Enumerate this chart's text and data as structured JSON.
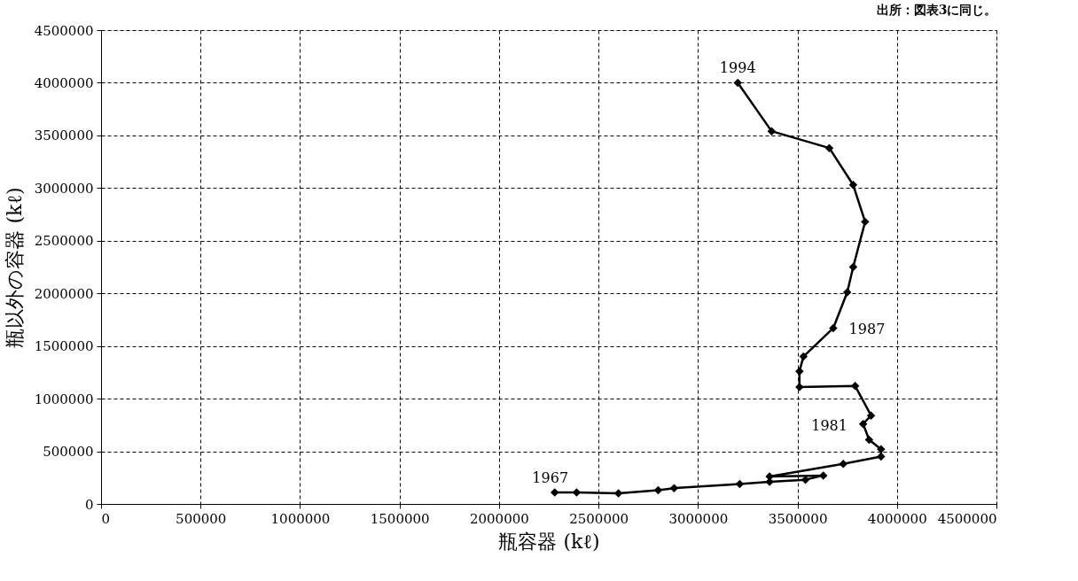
{
  "chart_data": {
    "type": "line",
    "xlabel": "瓶容器 (kℓ)",
    "ylabel": "瓶以外の容器 (kℓ)",
    "x": [
      2280000,
      2390000,
      2600000,
      2800000,
      2880000,
      3210000,
      3360000,
      3540000,
      3630000,
      3360000,
      3730000,
      3920000,
      3920000,
      3860000,
      3830000,
      3870000,
      3790000,
      3510000,
      3510000,
      3530000,
      3680000,
      3750000,
      3780000,
      3840000,
      3780000,
      3660000,
      3370000,
      3200000
    ],
    "series": [
      {
        "color": "#000000",
        "values": [
          110000,
          110000,
          100000,
          130000,
          150000,
          190000,
          210000,
          230000,
          270000,
          260000,
          380000,
          450000,
          520000,
          610000,
          760000,
          840000,
          1120000,
          1110000,
          1260000,
          1400000,
          1670000,
          2010000,
          2250000,
          2680000,
          3030000,
          3380000,
          3540000,
          4000000
        ]
      }
    ],
    "xlim": [
      0,
      4500000
    ],
    "ylim": [
      0,
      4500000
    ],
    "xticks": [
      0,
      500000,
      1000000,
      1500000,
      2000000,
      2500000,
      3000000,
      3500000,
      4000000,
      4500000
    ],
    "yticks": [
      0,
      500000,
      1000000,
      1500000,
      2000000,
      2500000,
      3000000,
      3500000,
      4000000,
      4500000
    ],
    "grid": true,
    "marker": "diamond",
    "line_style": "solid",
    "annotations": [
      {
        "text": "1967",
        "x": 2280000,
        "y": 110000
      },
      {
        "text": "1981",
        "x": 3830000,
        "y": 760000
      },
      {
        "text": "1987",
        "x": 3680000,
        "y": 1670000
      },
      {
        "text": "1994",
        "x": 3200000,
        "y": 4000000
      },
      "出所：図表3に同じ。"
    ]
  }
}
